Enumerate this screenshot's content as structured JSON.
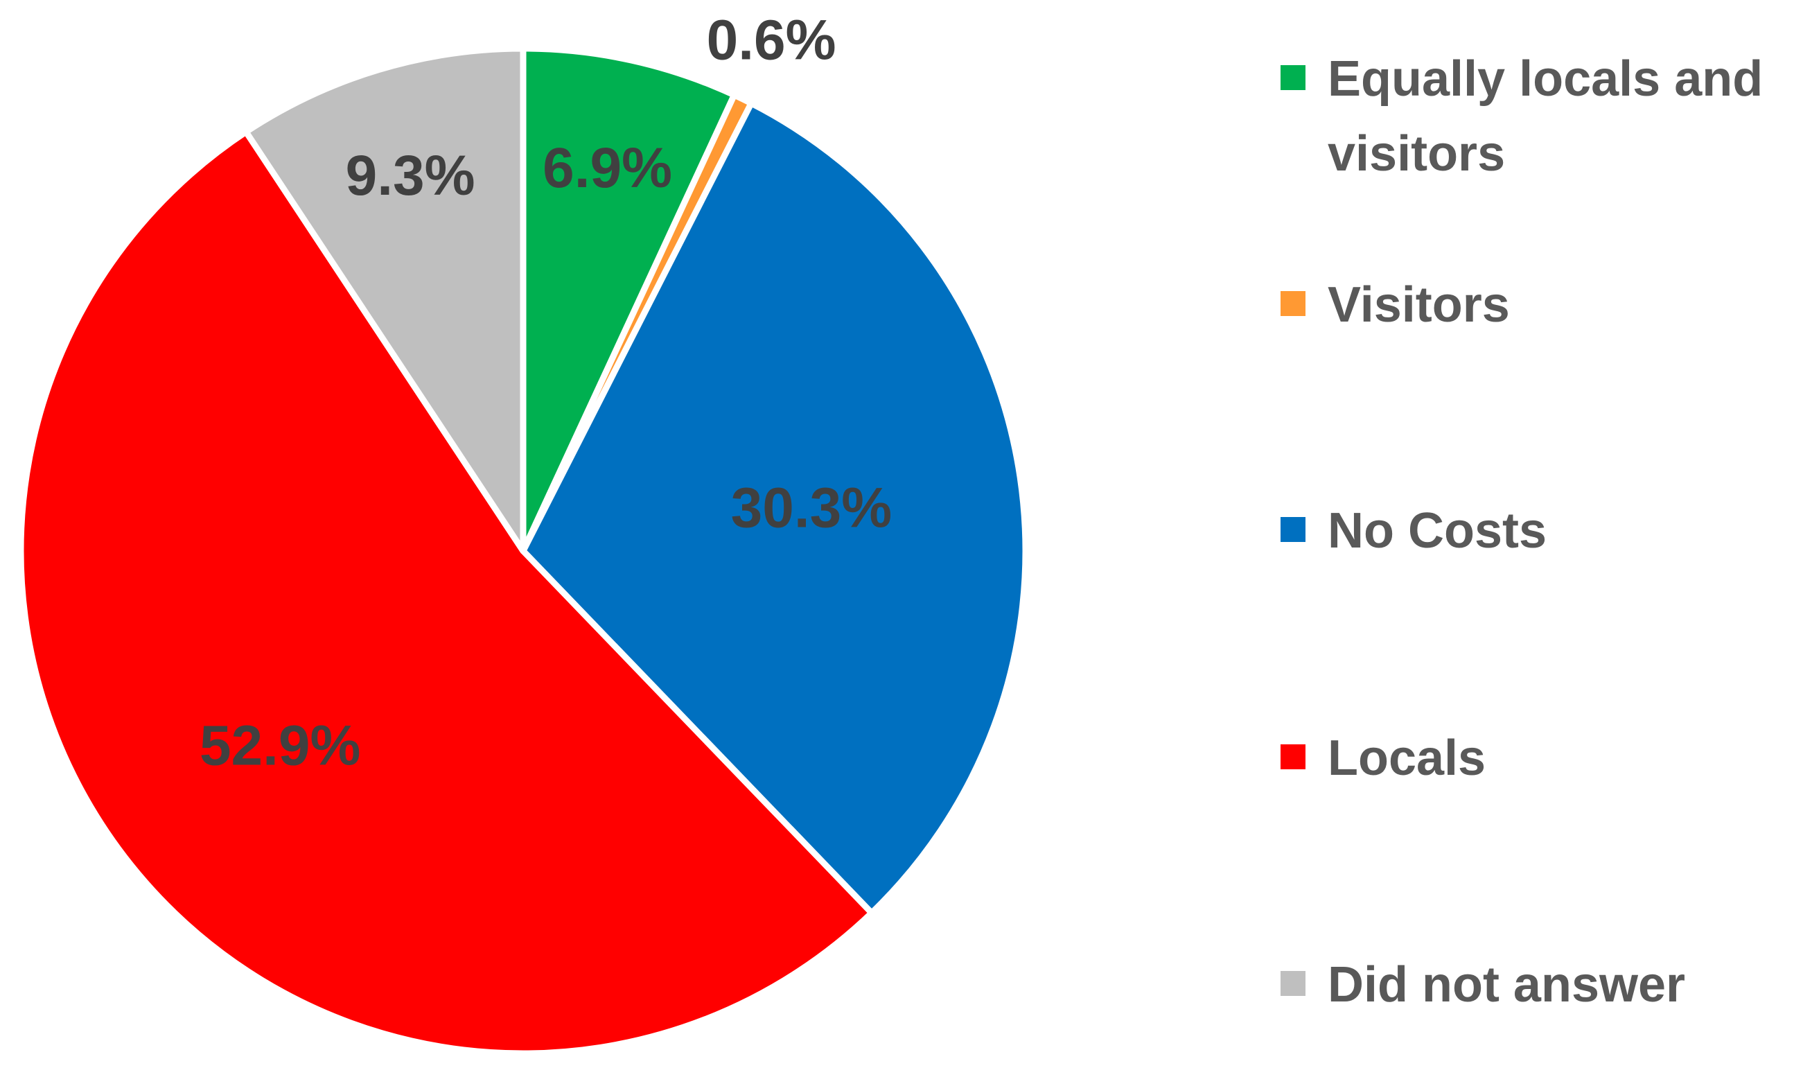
{
  "chart_data": {
    "type": "pie",
    "slices": [
      {
        "label": "Equally locals and visitors",
        "value": 6.9,
        "value_label": "6.9%",
        "color": "#00B050"
      },
      {
        "label": "Visitors",
        "value": 0.6,
        "value_label": "0.6%",
        "color": "#FF9933"
      },
      {
        "label": "No Costs",
        "value": 30.3,
        "value_label": "30.3%",
        "color": "#0070C0"
      },
      {
        "label": "Locals",
        "value": 52.9,
        "value_label": "52.9%",
        "color": "#FF0000"
      },
      {
        "label": "Did not answer",
        "value": 9.3,
        "value_label": "9.3%",
        "color": "#BFBFBF"
      }
    ],
    "legend_position": "right",
    "start_angle": "12 o'clock",
    "direction": "clockwise"
  }
}
